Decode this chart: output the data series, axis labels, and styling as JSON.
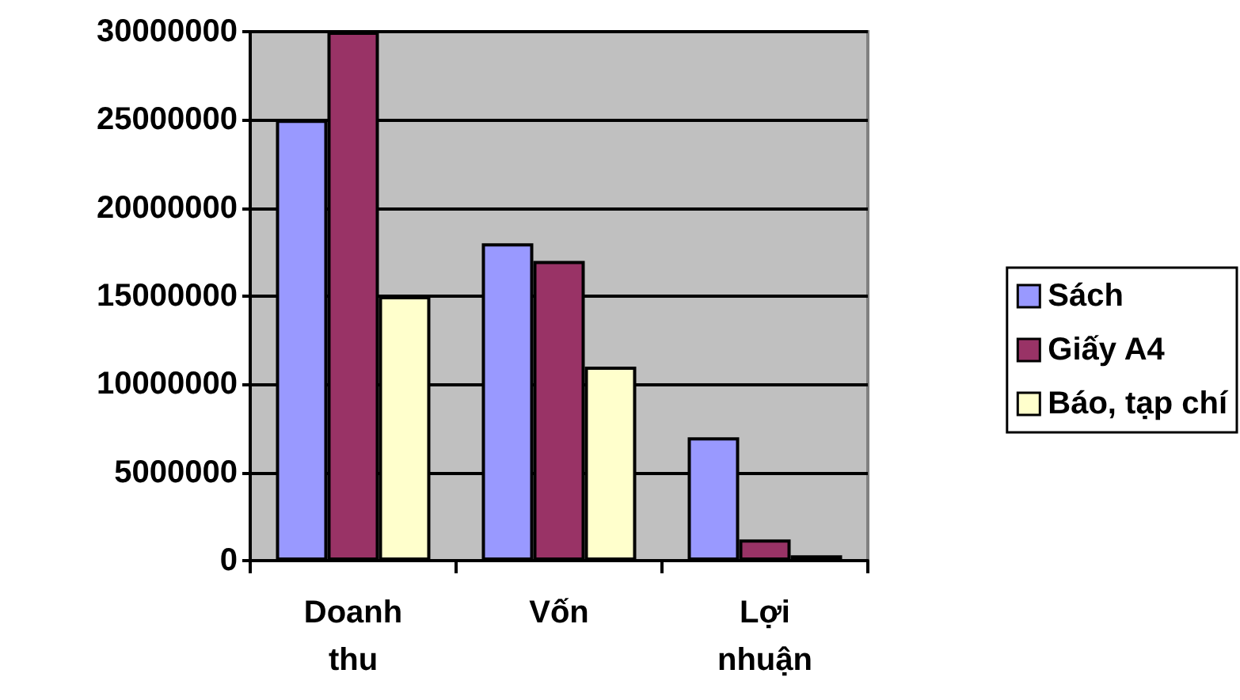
{
  "chart_data": {
    "type": "bar",
    "categories": [
      "Doanh\nthu",
      "Vốn",
      "Lợi\nnhuận"
    ],
    "series": [
      {
        "name": "Sách",
        "color": "#9999ff",
        "values": [
          25000000,
          18000000,
          7000000
        ]
      },
      {
        "name": "Giấy A4",
        "color": "#993366",
        "values": [
          30000000,
          17000000,
          1200000
        ]
      },
      {
        "name": "Báo, tạp chí",
        "color": "#ffffcc",
        "values": [
          15000000,
          11000000,
          300000
        ]
      }
    ],
    "ylim": [
      0,
      30000000
    ],
    "yticks": [
      0,
      5000000,
      10000000,
      15000000,
      20000000,
      25000000,
      30000000
    ],
    "grid": "y",
    "legend": "right"
  }
}
